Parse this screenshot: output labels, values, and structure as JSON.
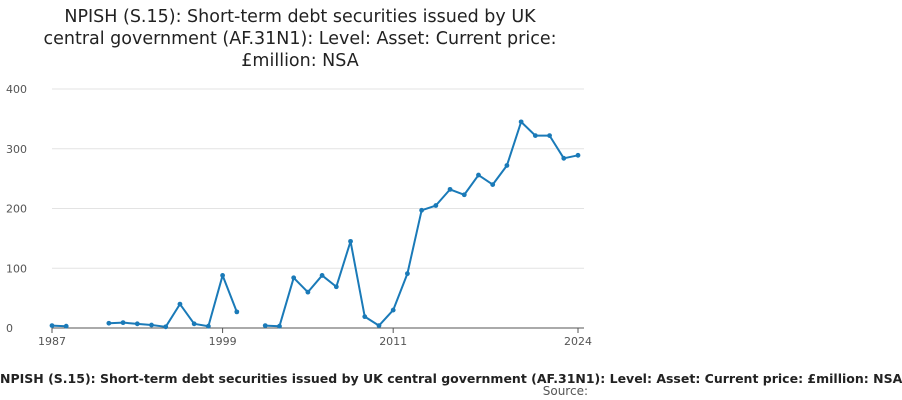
{
  "chart_data": {
    "type": "line",
    "title_lines": [
      "NPISH (S.15): Short-term debt securities issued by UK",
      "central government (AF.31N1): Level: Asset: Current price:",
      "£million: NSA"
    ],
    "xlabel": "",
    "ylabel": "",
    "ylim": [
      0,
      400
    ],
    "yticks": [
      0,
      100,
      200,
      300,
      400
    ],
    "xlim": [
      1987,
      2024
    ],
    "xticks": [
      1987,
      1999,
      2011,
      2024
    ],
    "grid": true,
    "legend_text": "NPISH (S.15): Short-term debt securities issued by UK central government (AF.31N1): Level: Asset: Current price: £million: NSA",
    "source_label": "Source:",
    "color": "#1a7ab8",
    "series": [
      {
        "values": [
          {
            "x": 1987,
            "y": 4
          },
          {
            "x": 1988,
            "y": 3
          },
          {
            "x": 1991,
            "y": 8
          },
          {
            "x": 1992,
            "y": 9
          },
          {
            "x": 1993,
            "y": 7
          },
          {
            "x": 1994,
            "y": 5
          },
          {
            "x": 1995,
            "y": 2
          },
          {
            "x": 1996,
            "y": 40
          },
          {
            "x": 1997,
            "y": 7
          },
          {
            "x": 1998,
            "y": 3
          },
          {
            "x": 1999,
            "y": 88
          },
          {
            "x": 2000,
            "y": 27
          },
          {
            "x": 2002,
            "y": 4
          },
          {
            "x": 2003,
            "y": 3
          },
          {
            "x": 2004,
            "y": 84
          },
          {
            "x": 2005,
            "y": 60
          },
          {
            "x": 2006,
            "y": 88
          },
          {
            "x": 2007,
            "y": 69
          },
          {
            "x": 2008,
            "y": 145
          },
          {
            "x": 2009,
            "y": 19
          },
          {
            "x": 2010,
            "y": 4
          },
          {
            "x": 2011,
            "y": 30
          },
          {
            "x": 2012,
            "y": 91
          },
          {
            "x": 2013,
            "y": 197
          },
          {
            "x": 2014,
            "y": 205
          },
          {
            "x": 2015,
            "y": 232
          },
          {
            "x": 2016,
            "y": 223
          },
          {
            "x": 2017,
            "y": 256
          },
          {
            "x": 2018,
            "y": 240
          },
          {
            "x": 2019,
            "y": 272
          },
          {
            "x": 2020,
            "y": 345
          },
          {
            "x": 2021,
            "y": 322
          },
          {
            "x": 2022,
            "y": 322
          },
          {
            "x": 2023,
            "y": 284
          },
          {
            "x": 2024,
            "y": 289
          }
        ]
      }
    ]
  }
}
